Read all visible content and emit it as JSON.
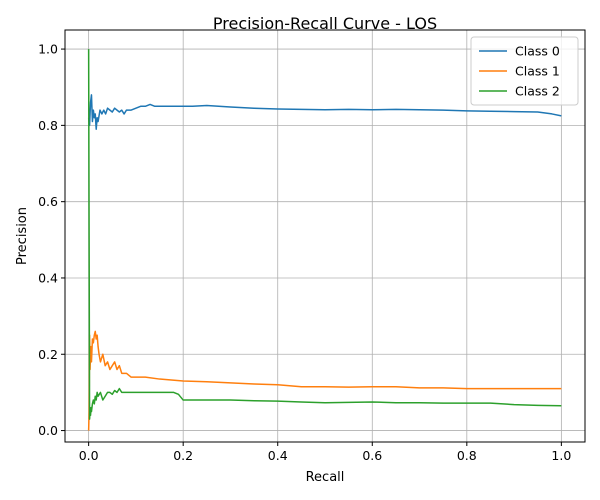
{
  "chart_data": {
    "type": "line",
    "title": "Precision-Recall Curve - LOS",
    "xlabel": "Recall",
    "ylabel": "Precision",
    "xlim": [
      -0.05,
      1.05
    ],
    "ylim": [
      -0.03,
      1.05
    ],
    "xticks": [
      0.0,
      0.2,
      0.4,
      0.6,
      0.8,
      1.0
    ],
    "xtick_labels": [
      "0.0",
      "0.2",
      "0.4",
      "0.6",
      "0.8",
      "1.0"
    ],
    "yticks": [
      0.0,
      0.2,
      0.4,
      0.6,
      0.8,
      1.0
    ],
    "ytick_labels": [
      "0.0",
      "0.2",
      "0.4",
      "0.6",
      "0.8",
      "1.0"
    ],
    "grid": true,
    "legend_position": "top-right",
    "series": [
      {
        "name": "Class 0",
        "color": "#1f77b4",
        "x": [
          0.0,
          0.002,
          0.004,
          0.006,
          0.008,
          0.01,
          0.012,
          0.014,
          0.016,
          0.018,
          0.02,
          0.024,
          0.028,
          0.032,
          0.036,
          0.04,
          0.045,
          0.05,
          0.055,
          0.06,
          0.065,
          0.07,
          0.075,
          0.08,
          0.09,
          0.1,
          0.11,
          0.12,
          0.13,
          0.14,
          0.15,
          0.16,
          0.18,
          0.2,
          0.22,
          0.25,
          0.3,
          0.35,
          0.4,
          0.45,
          0.5,
          0.55,
          0.6,
          0.65,
          0.7,
          0.75,
          0.8,
          0.85,
          0.9,
          0.95,
          0.98,
          1.0
        ],
        "y": [
          0.82,
          0.8,
          0.86,
          0.88,
          0.81,
          0.84,
          0.82,
          0.83,
          0.79,
          0.82,
          0.81,
          0.84,
          0.83,
          0.84,
          0.83,
          0.845,
          0.84,
          0.835,
          0.845,
          0.84,
          0.835,
          0.84,
          0.83,
          0.84,
          0.84,
          0.845,
          0.85,
          0.85,
          0.855,
          0.85,
          0.85,
          0.85,
          0.85,
          0.85,
          0.85,
          0.852,
          0.848,
          0.845,
          0.843,
          0.842,
          0.841,
          0.842,
          0.841,
          0.842,
          0.841,
          0.84,
          0.838,
          0.837,
          0.836,
          0.835,
          0.83,
          0.825
        ]
      },
      {
        "name": "Class 1",
        "color": "#ff7f0e",
        "x": [
          0.0,
          0.001,
          0.002,
          0.003,
          0.004,
          0.005,
          0.006,
          0.008,
          0.01,
          0.012,
          0.014,
          0.016,
          0.018,
          0.02,
          0.022,
          0.025,
          0.03,
          0.035,
          0.04,
          0.045,
          0.05,
          0.055,
          0.06,
          0.065,
          0.07,
          0.08,
          0.09,
          0.1,
          0.12,
          0.15,
          0.2,
          0.25,
          0.3,
          0.35,
          0.4,
          0.45,
          0.5,
          0.55,
          0.6,
          0.65,
          0.7,
          0.75,
          0.8,
          0.85,
          0.9,
          0.95,
          1.0
        ],
        "y": [
          0.0,
          0.05,
          0.25,
          0.16,
          0.2,
          0.22,
          0.18,
          0.24,
          0.23,
          0.25,
          0.26,
          0.24,
          0.25,
          0.22,
          0.2,
          0.18,
          0.2,
          0.17,
          0.18,
          0.16,
          0.17,
          0.18,
          0.16,
          0.17,
          0.15,
          0.15,
          0.14,
          0.14,
          0.14,
          0.135,
          0.13,
          0.128,
          0.125,
          0.122,
          0.12,
          0.115,
          0.115,
          0.114,
          0.115,
          0.115,
          0.112,
          0.112,
          0.11,
          0.11,
          0.11,
          0.11,
          0.11
        ]
      },
      {
        "name": "Class 2",
        "color": "#2ca02c",
        "x": [
          0.0,
          0.001,
          0.002,
          0.003,
          0.004,
          0.005,
          0.006,
          0.008,
          0.01,
          0.012,
          0.014,
          0.016,
          0.018,
          0.02,
          0.025,
          0.03,
          0.035,
          0.04,
          0.045,
          0.05,
          0.055,
          0.06,
          0.065,
          0.07,
          0.08,
          0.1,
          0.12,
          0.14,
          0.16,
          0.18,
          0.19,
          0.2,
          0.25,
          0.3,
          0.35,
          0.4,
          0.45,
          0.5,
          0.55,
          0.6,
          0.65,
          0.7,
          0.75,
          0.8,
          0.85,
          0.9,
          0.95,
          1.0
        ],
        "y": [
          1.0,
          0.5,
          0.03,
          0.05,
          0.04,
          0.06,
          0.05,
          0.07,
          0.08,
          0.07,
          0.09,
          0.08,
          0.1,
          0.09,
          0.1,
          0.08,
          0.09,
          0.1,
          0.1,
          0.095,
          0.105,
          0.1,
          0.11,
          0.1,
          0.1,
          0.1,
          0.1,
          0.1,
          0.1,
          0.1,
          0.095,
          0.08,
          0.08,
          0.08,
          0.078,
          0.077,
          0.075,
          0.073,
          0.074,
          0.075,
          0.073,
          0.073,
          0.072,
          0.072,
          0.072,
          0.068,
          0.066,
          0.065
        ]
      }
    ]
  }
}
